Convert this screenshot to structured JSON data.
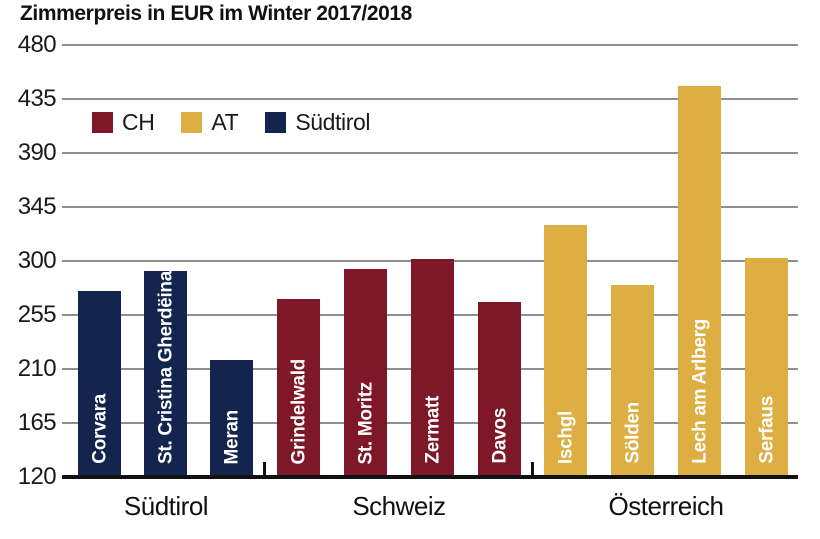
{
  "title": "Zimmerpreis in EUR im Winter 2017/2018",
  "colors": {
    "ch_red": "#7E1728",
    "at_gold": "#DDAF42",
    "suedtirol_navy": "#13254E",
    "gridline_grey": "#8f8f8f",
    "axis_black": "#111111"
  },
  "legend": [
    {
      "label": "CH",
      "color_key": "ch_red"
    },
    {
      "label": "AT",
      "color_key": "at_gold"
    },
    {
      "label": "Südtirol",
      "color_key": "suedtirol_navy"
    }
  ],
  "chart_data": {
    "type": "bar",
    "title": "Zimmerpreis in EUR im Winter 2017/2018",
    "ylabel": "Zimmerpreis in EUR",
    "xlabel": "",
    "ylim": [
      120,
      480
    ],
    "ytick_interval": 45,
    "yticks": [
      480,
      435,
      390,
      345,
      300,
      255,
      210,
      165,
      120
    ],
    "grid": true,
    "legend_position": "top-left-inside",
    "legend_entries": [
      "CH",
      "AT",
      "Südtirol"
    ],
    "groups": [
      {
        "label": "Südtirol",
        "series": "Südtirol",
        "color_key": "suedtirol_navy",
        "bars": [
          {
            "name": "Corvara",
            "value": 273
          },
          {
            "name": "St. Cristina Gherdëina",
            "value": 290
          },
          {
            "name": "Meran",
            "value": 216
          }
        ]
      },
      {
        "label": "Schweiz",
        "series": "CH",
        "color_key": "ch_red",
        "bars": [
          {
            "name": "Grindelwald",
            "value": 267
          },
          {
            "name": "St. Moritz",
            "value": 292
          },
          {
            "name": "Zermatt",
            "value": 300
          },
          {
            "name": "Davos",
            "value": 264
          }
        ]
      },
      {
        "label": "Österreich",
        "series": "AT",
        "color_key": "at_gold",
        "bars": [
          {
            "name": "Ischgl",
            "value": 328
          },
          {
            "name": "Sölden",
            "value": 278
          },
          {
            "name": "Lech am Arlberg",
            "value": 444
          },
          {
            "name": "Serfaus",
            "value": 301
          }
        ]
      }
    ]
  }
}
